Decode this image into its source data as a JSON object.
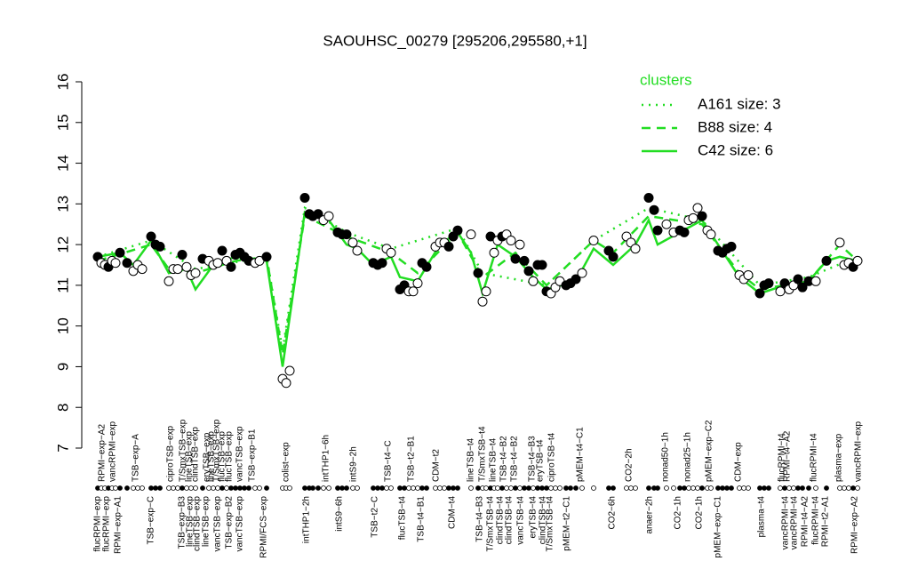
{
  "chart_data": {
    "type": "line",
    "title": "SAOUHSC_00279 [295206,295580,+1]",
    "ylim": [
      7,
      16
    ],
    "yticks": [
      7,
      8,
      9,
      10,
      11,
      12,
      13,
      14,
      15,
      16
    ],
    "xlim": [
      100,
      975
    ],
    "points": {
      "x": [
        110,
        114,
        118,
        122,
        126,
        130,
        135,
        143,
        150,
        155,
        160,
        170,
        175,
        180,
        190,
        195,
        200,
        205,
        210,
        215,
        220,
        228,
        235,
        240,
        245,
        250,
        255,
        260,
        265,
        270,
        275,
        280,
        287,
        292,
        300,
        318,
        322,
        326,
        343,
        348,
        352,
        358,
        364,
        370,
        380,
        385,
        390,
        397,
        402,
        420,
        425,
        430,
        435,
        440,
        450,
        455,
        460,
        465,
        470,
        475,
        480,
        490,
        495,
        500,
        505,
        510,
        515,
        530,
        538,
        543,
        547,
        552,
        556,
        560,
        565,
        570,
        575,
        580,
        585,
        590,
        595,
        600,
        605,
        610,
        615,
        620,
        625,
        630,
        637,
        642,
        648,
        655,
        668,
        685,
        690,
        705,
        710,
        715,
        730,
        736,
        740,
        750,
        758,
        765,
        770,
        775,
        780,
        785,
        790,
        796,
        800,
        808,
        813,
        818,
        823,
        832,
        837,
        842,
        855,
        860,
        865,
        878,
        883,
        888,
        893,
        898,
        903,
        910,
        918,
        930,
        945,
        950,
        955,
        960,
        965
      ],
      "y": [
        11.7,
        11.55,
        11.5,
        11.45,
        11.6,
        11.55,
        11.8,
        11.55,
        11.35,
        11.5,
        11.4,
        12.2,
        12.0,
        11.95,
        11.1,
        11.4,
        11.4,
        11.75,
        11.45,
        11.25,
        11.3,
        11.65,
        11.6,
        11.5,
        11.55,
        11.85,
        11.6,
        11.45,
        11.75,
        11.8,
        11.7,
        11.6,
        11.55,
        11.6,
        11.7,
        8.7,
        8.6,
        8.9,
        13.15,
        12.75,
        12.7,
        12.75,
        12.6,
        12.7,
        12.3,
        12.25,
        12.25,
        12.05,
        11.85,
        11.55,
        11.5,
        11.55,
        11.9,
        11.8,
        10.9,
        11.0,
        10.85,
        10.85,
        11.05,
        11.55,
        11.45,
        11.95,
        12.05,
        12.05,
        11.95,
        12.2,
        12.35,
        12.25,
        11.3,
        10.6,
        10.85,
        12.2,
        11.8,
        12.1,
        12.2,
        12.25,
        12.1,
        11.65,
        12.0,
        11.6,
        11.35,
        11.1,
        11.5,
        11.5,
        10.85,
        10.8,
        10.95,
        11.1,
        11.0,
        11.05,
        11.15,
        11.3,
        12.1,
        11.85,
        11.7,
        12.2,
        12.05,
        11.9,
        13.15,
        12.85,
        12.35,
        12.5,
        12.3,
        12.35,
        12.3,
        12.6,
        12.65,
        12.9,
        12.7,
        12.35,
        12.25,
        11.85,
        11.8,
        11.9,
        11.95,
        11.25,
        11.15,
        11.25,
        10.8,
        11.0,
        11.05,
        10.85,
        11.05,
        10.9,
        11.0,
        11.15,
        10.95,
        11.1,
        11.1,
        11.6,
        12.05,
        11.5,
        11.55,
        11.45,
        11.6
      ],
      "fill": [
        "black",
        "white",
        "white",
        "black",
        "white",
        "white",
        "black",
        "black",
        "white",
        "white",
        "white",
        "black",
        "black",
        "black",
        "white",
        "white",
        "white",
        "black",
        "white",
        "white",
        "white",
        "black",
        "white",
        "white",
        "white",
        "black",
        "white",
        "black",
        "black",
        "black",
        "black",
        "black",
        "white",
        "white",
        "black",
        "white",
        "white",
        "white",
        "black",
        "black",
        "black",
        "black",
        "white",
        "white",
        "black",
        "black",
        "black",
        "white",
        "white",
        "black",
        "black",
        "black",
        "white",
        "white",
        "black",
        "black",
        "white",
        "white",
        "white",
        "black",
        "black",
        "white",
        "white",
        "white",
        "black",
        "black",
        "black",
        "white",
        "black",
        "white",
        "white",
        "black",
        "white",
        "white",
        "black",
        "white",
        "white",
        "black",
        "white",
        "black",
        "black",
        "white",
        "black",
        "black",
        "black",
        "white",
        "white",
        "white",
        "black",
        "black",
        "black",
        "white",
        "white",
        "black",
        "black",
        "white",
        "white",
        "white",
        "black",
        "black",
        "black",
        "white",
        "white",
        "black",
        "black",
        "white",
        "white",
        "white",
        "black",
        "white",
        "white",
        "black",
        "black",
        "black",
        "black",
        "white",
        "white",
        "white",
        "black",
        "black",
        "black",
        "white",
        "black",
        "white",
        "white",
        "black",
        "black",
        "black",
        "white",
        "black",
        "white",
        "white",
        "white",
        "black",
        "white"
      ]
    },
    "legend_title": "clusters",
    "series": [
      {
        "name": "A161 size: 3",
        "color": "#22dd22",
        "dash": "dotted",
        "x": [
          110,
          170,
          220,
          300,
          318,
          343,
          390,
          440,
          515,
          543,
          615,
          668,
          730,
          790,
          855,
          910,
          965
        ],
        "values": [
          11.7,
          12.1,
          11.4,
          11.7,
          9.4,
          12.9,
          12.3,
          11.9,
          12.4,
          11.3,
          11.0,
          12.1,
          12.9,
          12.6,
          11.0,
          11.2,
          11.7
        ]
      },
      {
        "name": "B88 size: 4",
        "color": "#22dd22",
        "dash": "dashed",
        "x": [
          110,
          170,
          190,
          220,
          265,
          300,
          318,
          343,
          390,
          440,
          470,
          515,
          543,
          580,
          615,
          668,
          690,
          730,
          790,
          832,
          855,
          910,
          945,
          965
        ],
        "values": [
          11.6,
          12.0,
          11.4,
          11.3,
          11.6,
          11.7,
          9.3,
          12.7,
          12.2,
          11.8,
          11.3,
          12.3,
          11.2,
          11.8,
          11.0,
          12.1,
          11.8,
          12.7,
          12.5,
          11.3,
          10.9,
          11.1,
          12.0,
          11.6
        ]
      },
      {
        "name": "C42 size: 6",
        "color": "#22dd22",
        "dash": "solid",
        "x": [
          110,
          135,
          150,
          170,
          190,
          210,
          220,
          240,
          265,
          300,
          318,
          343,
          370,
          390,
          402,
          420,
          440,
          450,
          470,
          495,
          515,
          530,
          543,
          560,
          580,
          600,
          615,
          648,
          668,
          690,
          715,
          730,
          740,
          765,
          790,
          808,
          832,
          855,
          883,
          910,
          930,
          945,
          965
        ],
        "values": [
          11.7,
          11.8,
          11.5,
          12.1,
          11.3,
          11.4,
          10.9,
          11.5,
          11.7,
          11.6,
          9.0,
          12.8,
          12.6,
          12.0,
          11.9,
          11.5,
          11.7,
          11.2,
          11.1,
          12.0,
          12.3,
          11.8,
          10.8,
          12.0,
          11.7,
          11.2,
          10.9,
          11.1,
          11.9,
          11.5,
          12.0,
          12.6,
          12.0,
          12.3,
          12.6,
          12.0,
          11.2,
          10.8,
          11.0,
          11.1,
          11.6,
          11.7,
          11.6
        ]
      }
    ],
    "top_labels": {
      "x": [
        115,
        127,
        153,
        192,
        206,
        213,
        220,
        233,
        238,
        244,
        250,
        258,
        270,
        284,
        322,
        367,
        398,
        437,
        463,
        491,
        530,
        543,
        555,
        567,
        579,
        599,
        608,
        621,
        653,
        708,
        749,
        774,
        798,
        831,
        880,
        886,
        916,
        944,
        966
      ],
      "labels": [
        "RPMI−exp−A2",
        "vancRPMI−exp",
        "TSB−exp−A",
        "ciproTSB−exp",
        "T/SmxTSB−exp",
        "lineTSB−exp",
        "clindTSB−exp",
        "eryTSB−exp",
        "lineTSB−exp",
        "T/SmxTSB−exp",
        "flucTSB−exp",
        "flucTSB−exp",
        "vancTSB−exp",
        "TSB−exp−B1",
        "colist−exp",
        "intTHP1−6h",
        "intS9−2h",
        "TSB−t4−C",
        "TSB−t2−B1",
        "CDM−t2",
        "lineTSB−t4",
        "T/SmxTSB−t4",
        "lineTSB−t4",
        "TSB−t4−B2",
        "TSB−t4−B2",
        "TSB−t4−B3",
        "eryTSB−t4",
        "ciproTSB−t4",
        "pMEM−t4−C1",
        "CO2−2h",
        "nonad50−1h",
        "nonad25−1h",
        "pMEM−exp−C2",
        "CDM−exp",
        "flucRPMI−t4",
        "RPMI−t4−A2",
        "flucRPMI−t4",
        "plasma−exp",
        "vancRPMI−exp"
      ]
    },
    "bottom_labels": {
      "x": [
        110,
        120,
        133,
        170,
        205,
        214,
        222,
        232,
        245,
        258,
        270,
        297,
        345,
        382,
        422,
        453,
        474,
        509,
        540,
        552,
        563,
        573,
        586,
        600,
        611,
        619,
        638,
        689,
        731,
        763,
        787,
        808,
        857,
        884,
        894,
        906,
        918,
        929,
        962
      ],
      "labels": [
        "flucRPMI−exp",
        "flucRPMI−exp",
        "RPMI−exp−A1",
        "TSB−exp−C",
        "TSB−exp−B3",
        "lineTSB−exp",
        "clindTSB−exp",
        "lineTSB−exp",
        "vancTSB−exp",
        "TSB−exp−B2",
        "vancTSB−exp",
        "RPMI/FCS−exp",
        "intTHP1−2h",
        "intS9−6h",
        "TSB−t2−C",
        "flucTSB−t4",
        "TSB−t4−B1",
        "CDM−t4",
        "TSB−t4−B3",
        "T/SmxTSB−t4",
        "clindTSB−t4",
        "clindTSB−t4",
        "vancTSB−t4",
        "eryTSB−t4",
        "clindTSB−t4",
        "T/SmxTSB−t4",
        "pMEM−t2−C1",
        "CO2−6h",
        "anaer−2h",
        "CO2−1h",
        "CO2−1h",
        "pMEM−exp−C1",
        "plasma−t4",
        "vancRPMI−t4",
        "vancRPMI−t4",
        "RPMI−t4−A2",
        "flucRPMI−t4",
        "RPMI−t2−A1",
        "RPMI−exp−A2"
      ]
    }
  }
}
